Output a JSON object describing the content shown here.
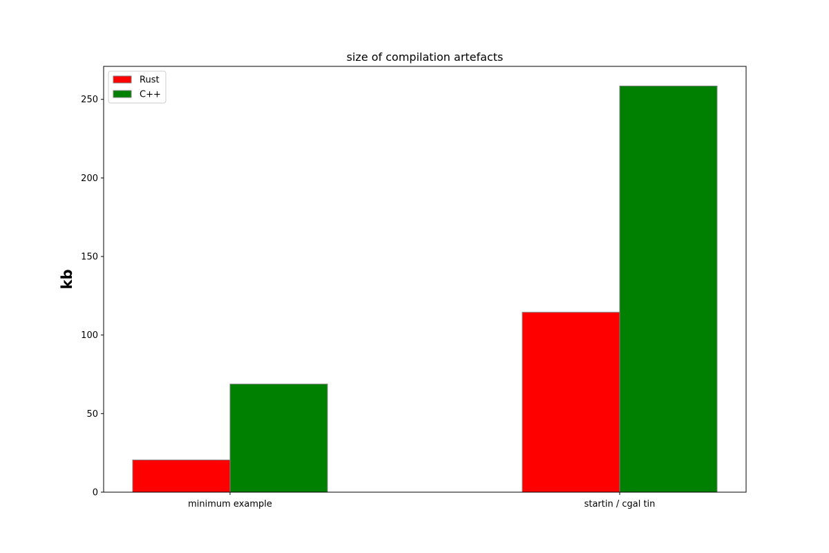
{
  "chart_data": {
    "type": "bar",
    "title": "size of compilation artefacts",
    "xlabel": "",
    "ylabel": "kb",
    "categories": [
      "minimum example",
      "startin / cgal tin"
    ],
    "series": [
      {
        "name": "Rust",
        "values": [
          20.5,
          114.5
        ],
        "color": "#ff0000"
      },
      {
        "name": "C++",
        "values": [
          68.8,
          258.5
        ],
        "color": "#008000"
      }
    ],
    "ylim": [
      0,
      271
    ],
    "yticks": [
      0,
      50,
      100,
      150,
      200,
      250
    ],
    "legend_position": "upper left",
    "grid": false,
    "bar_edge_color": "#808080"
  }
}
